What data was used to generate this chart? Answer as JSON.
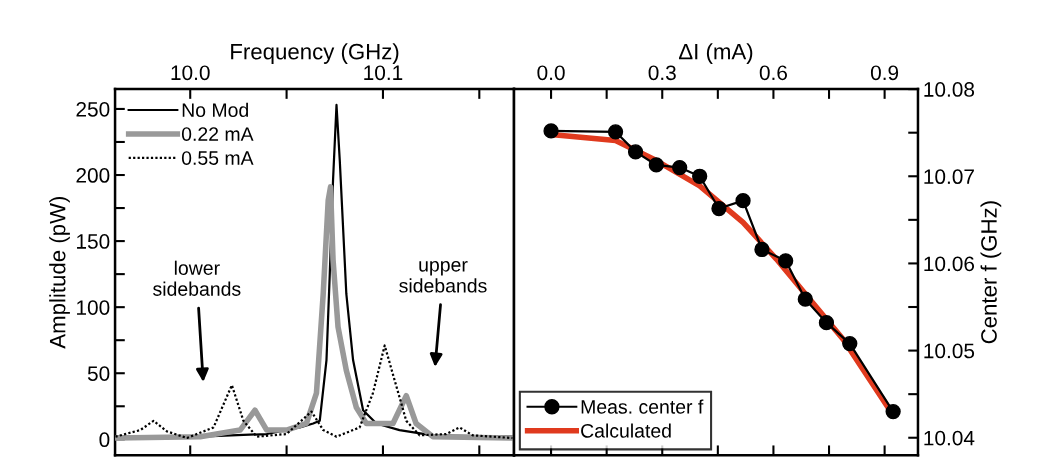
{
  "chart_data": [
    {
      "type": "line",
      "xlabel": "Frequency (GHz)",
      "ylabel": "Amplitude (pW)",
      "xlim": [
        9.961,
        10.168
      ],
      "xticks": [
        {
          "value": 10.0,
          "label": "10.0"
        },
        {
          "value": 10.05,
          "label": null
        },
        10.1,
        {
          "value": 10.15,
          "label": null
        }
      ],
      "ylim": [
        -12,
        265
      ],
      "yticks": [
        0,
        {
          "value": 25,
          "label": null
        },
        50,
        {
          "value": 75,
          "label": null
        },
        100,
        {
          "value": 125,
          "label": null
        },
        150,
        {
          "value": 175,
          "label": null
        },
        200,
        {
          "value": 225,
          "label": null
        },
        250
      ],
      "legend": "top left",
      "grid": false,
      "series": [
        {
          "name": "No Mod",
          "color": "#000000",
          "line_style": "solid",
          "x": [
            9.9612,
            10.0052,
            10.0397,
            10.0569,
            10.0638,
            10.0672,
            10.0707,
            10.0724,
            10.0741,
            10.0759,
            10.0776,
            10.081,
            10.0845,
            10.0897,
            10.0966,
            10.1086,
            10.1259,
            10.1672
          ],
          "values": [
            2,
            2,
            4,
            9,
            12,
            14,
            60,
            125,
            196,
            253,
            211,
            110,
            60,
            22,
            12,
            7,
            3,
            2
          ]
        },
        {
          "name": "0.22 mA",
          "color": "#999999",
          "line_style": "solid",
          "x": [
            9.9612,
            10.0052,
            10.0259,
            10.0336,
            10.0397,
            10.05,
            10.0603,
            10.0655,
            10.069,
            10.0716,
            10.0728,
            10.0741,
            10.0767,
            10.081,
            10.0862,
            10.0914,
            10.1052,
            10.1121,
            10.1172,
            10.1259,
            10.1672
          ],
          "values": [
            1,
            2,
            7,
            22,
            7,
            7,
            12,
            35,
            110,
            181,
            191,
            136,
            85,
            52,
            24,
            12,
            12,
            33,
            12,
            2,
            1
          ]
        },
        {
          "name": "0.55 mA",
          "color": "#000000",
          "line_style": "dotted",
          "x": [
            9.9612,
            9.9741,
            9.981,
            9.9879,
            9.9983,
            10.0121,
            10.0216,
            10.0276,
            10.0345,
            10.05,
            10.0629,
            10.069,
            10.0759,
            10.0879,
            10.0948,
            10.1009,
            10.106,
            10.1121,
            10.119,
            10.1328,
            10.1397,
            10.1466,
            10.1672
          ],
          "values": [
            2,
            7,
            14,
            6,
            1,
            9,
            41,
            14,
            2,
            4,
            21,
            7,
            2,
            9,
            35,
            71,
            45,
            14,
            3,
            4,
            9,
            3,
            1
          ]
        }
      ],
      "annotations": [
        "lower\nsidebands",
        "upper\nsidebands"
      ]
    },
    {
      "type": "line",
      "xlabel": "ΔI (mA)",
      "ylabel": "Center f (GHz)",
      "xlim": [
        -0.1,
        0.99
      ],
      "xticks": [
        {
          "value": 0.0,
          "label": "0.0"
        },
        {
          "value": 0.15,
          "label": null
        },
        0.3,
        {
          "value": 0.45,
          "label": null
        },
        0.6,
        {
          "value": 0.75,
          "label": null
        },
        0.9
      ],
      "ylim": [
        10.038,
        10.08
      ],
      "yticks": [
        10.04,
        {
          "value": 10.045,
          "label": null
        },
        10.05,
        {
          "value": 10.055,
          "label": null
        },
        10.06,
        {
          "value": 10.065,
          "label": null
        },
        10.07,
        {
          "value": 10.075,
          "label": null
        },
        10.08
      ],
      "legend": "bottom left",
      "grid": false,
      "series": [
        {
          "name": "Meas. center f",
          "color": "#000000",
          "marker": "circle",
          "line_style": "solid",
          "x": [
            0,
            0.174,
            0.228,
            0.284,
            0.347,
            0.401,
            0.453,
            0.518,
            0.569,
            0.633,
            0.686,
            0.743,
            0.806,
            0.923
          ],
          "values": [
            10.0752,
            10.0751,
            10.0728,
            10.0713,
            10.071,
            10.07,
            10.0663,
            10.0672,
            10.0616,
            10.0603,
            10.0559,
            10.0532,
            10.0508,
            10.043
          ]
        },
        {
          "name": "Calculated",
          "color": "#e03a1e",
          "line_style": "solid",
          "x": [
            0,
            0.174,
            0.284,
            0.401,
            0.518,
            0.608,
            0.698,
            0.788,
            0.923
          ],
          "values": [
            10.0748,
            10.0741,
            10.0718,
            10.0689,
            10.0647,
            10.0605,
            10.0559,
            10.0513,
            10.0426
          ]
        }
      ]
    }
  ]
}
